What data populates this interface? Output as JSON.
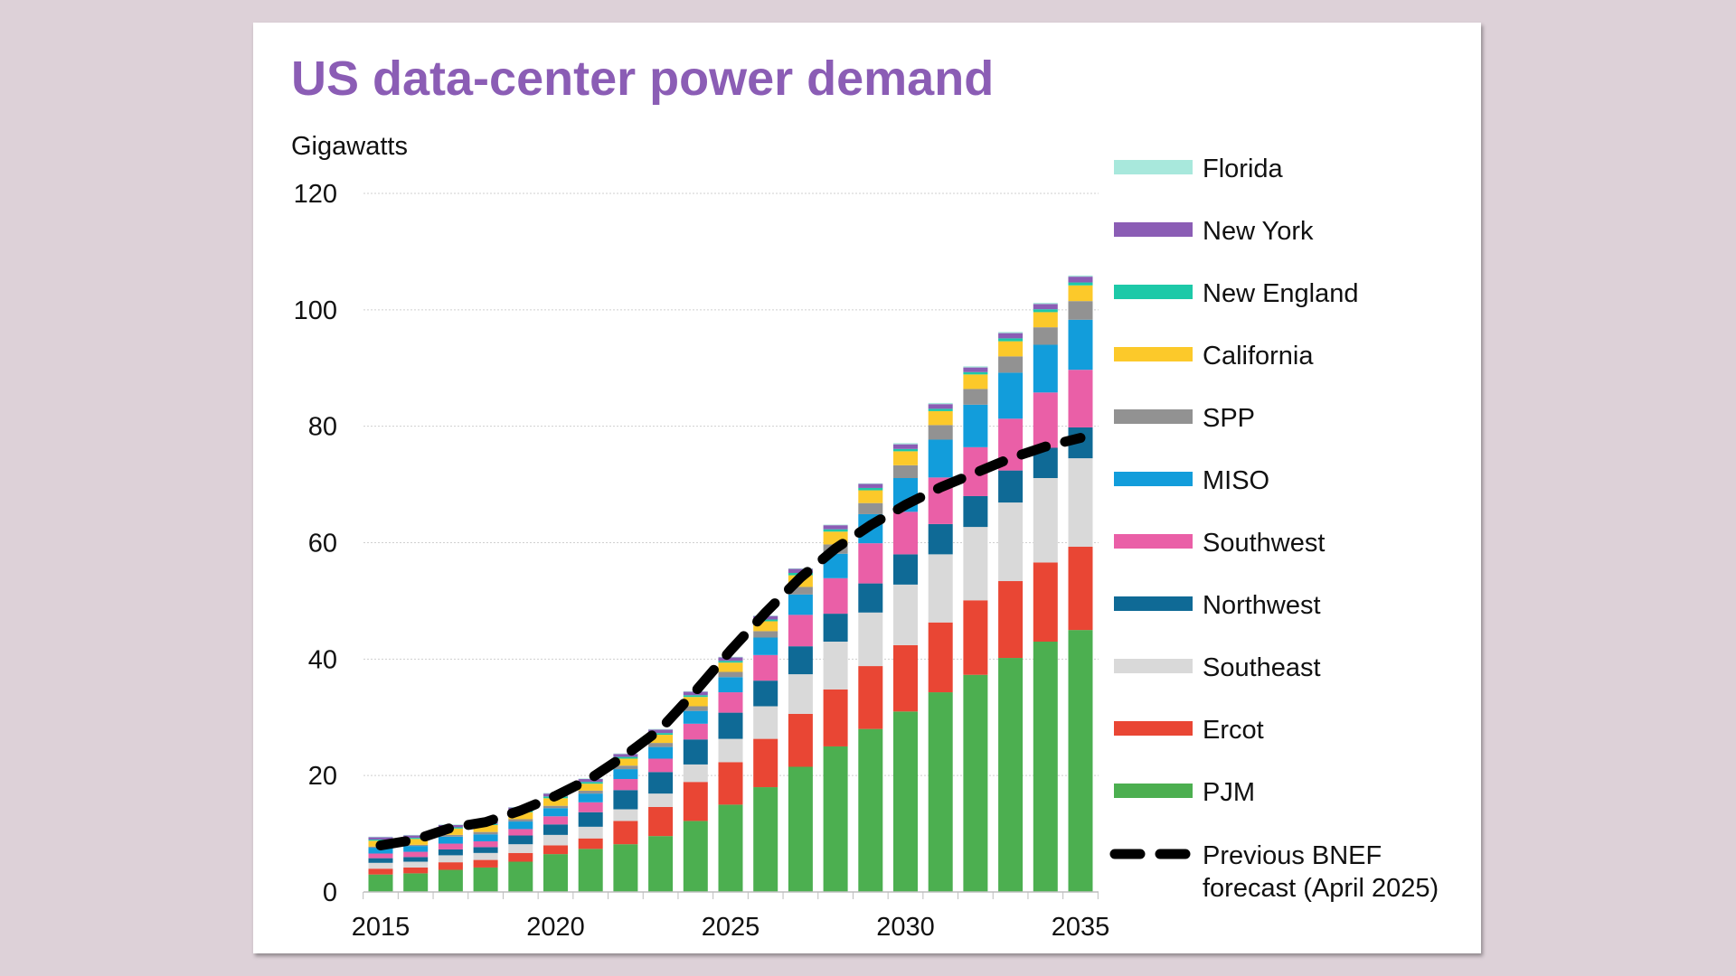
{
  "chart_data": {
    "type": "bar",
    "stacked": true,
    "title": "US data-center power demand",
    "ylabel": "Gigawatts",
    "xlabel": "",
    "ylim": [
      0,
      120
    ],
    "yticks": [
      0,
      20,
      40,
      60,
      80,
      100,
      120
    ],
    "xtick_labels": [
      "2015",
      "2020",
      "2025",
      "2030",
      "2035"
    ],
    "grid": true,
    "legend_position": "right",
    "title_color": "#8b5db5",
    "categories": [
      2015,
      2016,
      2017,
      2018,
      2019,
      2020,
      2021,
      2022,
      2023,
      2024,
      2025,
      2026,
      2027,
      2028,
      2029,
      2030,
      2031,
      2032,
      2033,
      2034,
      2035
    ],
    "series": [
      {
        "name": "PJM",
        "color": "#4caf50",
        "values": [
          3,
          3.2,
          3.8,
          4.2,
          5.2,
          6.5,
          7.4,
          8.2,
          9.6,
          12.2,
          15,
          18,
          21.5,
          25,
          28,
          31,
          34.3,
          37.3,
          40.2,
          43,
          45
        ]
      },
      {
        "name": "Ercot",
        "color": "#e94634",
        "values": [
          1,
          1,
          1.3,
          1.3,
          1.5,
          1.5,
          1.8,
          4,
          5,
          6.7,
          7.3,
          8.3,
          9.1,
          9.8,
          10.8,
          11.4,
          12,
          12.8,
          13.2,
          13.6,
          14.3
        ]
      },
      {
        "name": "Southeast",
        "color": "#d9d9d9",
        "values": [
          1,
          1,
          1.2,
          1.2,
          1.5,
          1.8,
          2,
          2,
          2.3,
          3,
          4,
          5.6,
          6.8,
          8.2,
          9.2,
          10.4,
          11.7,
          12.6,
          13.5,
          14.5,
          15.2
        ]
      },
      {
        "name": "Northwest",
        "color": "#0f6a96",
        "values": [
          0.8,
          0.8,
          1,
          1,
          1.5,
          1.8,
          2.5,
          3.3,
          3.7,
          4.3,
          4.5,
          4.4,
          4.8,
          4.8,
          5,
          5.2,
          5.2,
          5.3,
          5.5,
          5.2,
          5.3
        ]
      },
      {
        "name": "Southwest",
        "color": "#ea5fa7",
        "values": [
          0.8,
          0.9,
          1,
          1,
          1.1,
          1.4,
          1.7,
          1.9,
          2.3,
          2.7,
          3.5,
          4.4,
          5.4,
          6.1,
          6.9,
          7.3,
          8,
          8.4,
          8.9,
          9.5,
          9.9
        ]
      },
      {
        "name": "MISO",
        "color": "#129ddb",
        "values": [
          1,
          1,
          1.2,
          1.2,
          1.3,
          1.4,
          1.5,
          1.7,
          2,
          2.2,
          2.6,
          3,
          3.5,
          4.2,
          5,
          5.8,
          6.5,
          7.3,
          7.9,
          8.2,
          8.6
        ]
      },
      {
        "name": "SPP",
        "color": "#929292",
        "values": [
          0.2,
          0.2,
          0.3,
          0.4,
          0.4,
          0.4,
          0.5,
          0.6,
          0.7,
          0.8,
          0.9,
          1.1,
          1.3,
          1.6,
          1.9,
          2.2,
          2.5,
          2.7,
          2.8,
          3,
          3.2
        ]
      },
      {
        "name": "California",
        "color": "#fcc92a",
        "values": [
          1,
          1,
          1.1,
          1.2,
          1.2,
          1.3,
          1.2,
          1.2,
          1.4,
          1.6,
          1.6,
          1.7,
          2,
          2.2,
          2.2,
          2.4,
          2.4,
          2.5,
          2.6,
          2.6,
          2.7
        ]
      },
      {
        "name": "New England",
        "color": "#1dc9a8",
        "values": [
          0.2,
          0.2,
          0.2,
          0.2,
          0.3,
          0.3,
          0.3,
          0.3,
          0.3,
          0.3,
          0.3,
          0.3,
          0.4,
          0.4,
          0.4,
          0.4,
          0.4,
          0.4,
          0.5,
          0.5,
          0.5
        ]
      },
      {
        "name": "New York",
        "color": "#8b5db5",
        "values": [
          0.4,
          0.4,
          0.4,
          0.4,
          0.5,
          0.5,
          0.5,
          0.5,
          0.6,
          0.6,
          0.6,
          0.6,
          0.7,
          0.7,
          0.7,
          0.8,
          0.8,
          0.8,
          0.9,
          0.9,
          1.0
        ]
      },
      {
        "name": "Florida",
        "color": "#a8e8dc",
        "values": [
          0.1,
          0.1,
          0.1,
          0.1,
          0.1,
          0.1,
          0.1,
          0.1,
          0.1,
          0.1,
          0.1,
          0.1,
          0.1,
          0.1,
          0.1,
          0.2,
          0.2,
          0.2,
          0.2,
          0.2,
          0.2
        ]
      }
    ],
    "line_series": {
      "name": "Previous BNEF forecast (April 2025)",
      "name_lines": [
        "Previous BNEF",
        "forecast (April 2025)"
      ],
      "style": "dashed",
      "color": "#000000",
      "values": [
        8,
        9,
        11,
        12,
        14,
        16.5,
        19.5,
        23.5,
        28,
        34.5,
        41.5,
        48,
        54,
        59,
        63,
        66.5,
        69.5,
        72,
        74.5,
        76.5,
        78
      ]
    }
  }
}
